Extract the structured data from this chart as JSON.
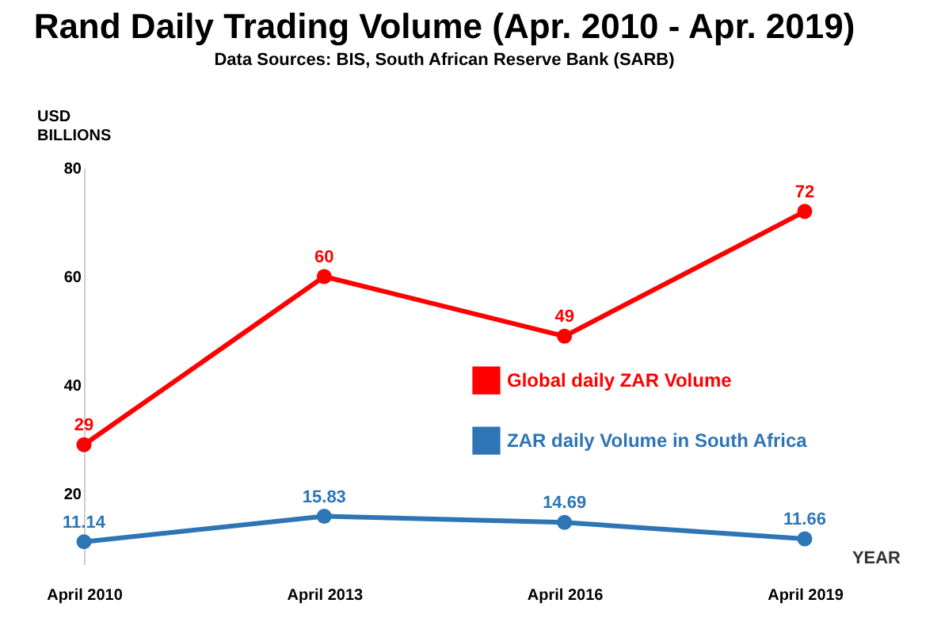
{
  "chart_data": {
    "type": "line",
    "title": "Rand Daily Trading Volume (Apr. 2010 - Apr. 2019)",
    "subtitle": "Data Sources: BIS, South African Reserve Bank (SARB)",
    "xlabel": "YEAR",
    "ylabel": "USD BILLIONS",
    "categories": [
      "April 2010",
      "April 2013",
      "April 2016",
      "April 2019"
    ],
    "series": [
      {
        "name": "Global daily ZAR Volume",
        "color": "#ff0000",
        "values": [
          29,
          60,
          49,
          72
        ]
      },
      {
        "name": "ZAR daily Volume in South Africa",
        "color": "#2e75b6",
        "values": [
          11.14,
          15.83,
          14.69,
          11.66
        ]
      }
    ],
    "ylim": [
      7,
      80
    ],
    "yticks": [
      20,
      40,
      60,
      80
    ],
    "grid": false,
    "legend": "right",
    "marker": "circle",
    "line_style": "solid",
    "data_labels": true
  }
}
